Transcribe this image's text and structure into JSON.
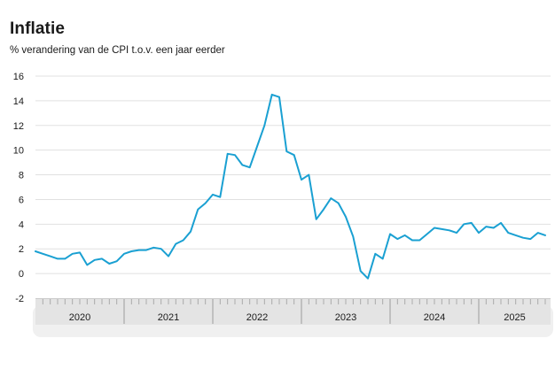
{
  "header": {
    "title": "Inflatie",
    "subtitle": "% verandering van de CPI t.o.v. een jaar eerder"
  },
  "chart_data": {
    "type": "line",
    "title": "Inflatie",
    "subtitle": "% verandering van de CPI t.o.v. een jaar eerder",
    "x_domain": "monthly from 2020-01 through 2025-10",
    "years": [
      "2020",
      "2021",
      "2022",
      "2023",
      "2024",
      "2025"
    ],
    "months_per_year": 12,
    "y_ticks": [
      16,
      14,
      12,
      10,
      8,
      6,
      4,
      2,
      0,
      -2
    ],
    "ylim": [
      -2,
      16
    ],
    "grid": true,
    "legend_position": "none",
    "series": [
      {
        "name": "Inflatie (CPI, % t.o.v. een jaar eerder)",
        "start": "2020-01",
        "values": [
          1.8,
          1.6,
          1.4,
          1.2,
          1.2,
          1.6,
          1.7,
          0.7,
          1.1,
          1.2,
          0.8,
          1.0,
          1.6,
          1.8,
          1.9,
          1.9,
          2.1,
          2.0,
          1.4,
          2.4,
          2.7,
          3.4,
          5.2,
          5.7,
          6.4,
          6.2,
          9.7,
          9.6,
          8.8,
          8.6,
          10.3,
          12.0,
          14.5,
          14.3,
          9.9,
          9.6,
          7.6,
          8.0,
          4.4,
          5.2,
          6.1,
          5.7,
          4.6,
          3.0,
          0.2,
          -0.4,
          1.6,
          1.2,
          3.2,
          2.8,
          3.1,
          2.7,
          2.7,
          3.2,
          3.7,
          3.6,
          3.5,
          3.3,
          4.0,
          4.1,
          3.3,
          3.8,
          3.7,
          4.1,
          3.3,
          3.1,
          2.9,
          2.8,
          3.3,
          3.1
        ]
      }
    ]
  },
  "colors": {
    "line": "#1aa0d2",
    "grid": "#e1e1e1",
    "band_top_edge": "#c9c9c9",
    "axis_band": "#e4e4e4",
    "axis_track": "#f0f0f0",
    "month_tick": "#ababab",
    "year_separator": "#9c9c9c",
    "text": "#1a1a1a",
    "background": "#ffffff"
  }
}
